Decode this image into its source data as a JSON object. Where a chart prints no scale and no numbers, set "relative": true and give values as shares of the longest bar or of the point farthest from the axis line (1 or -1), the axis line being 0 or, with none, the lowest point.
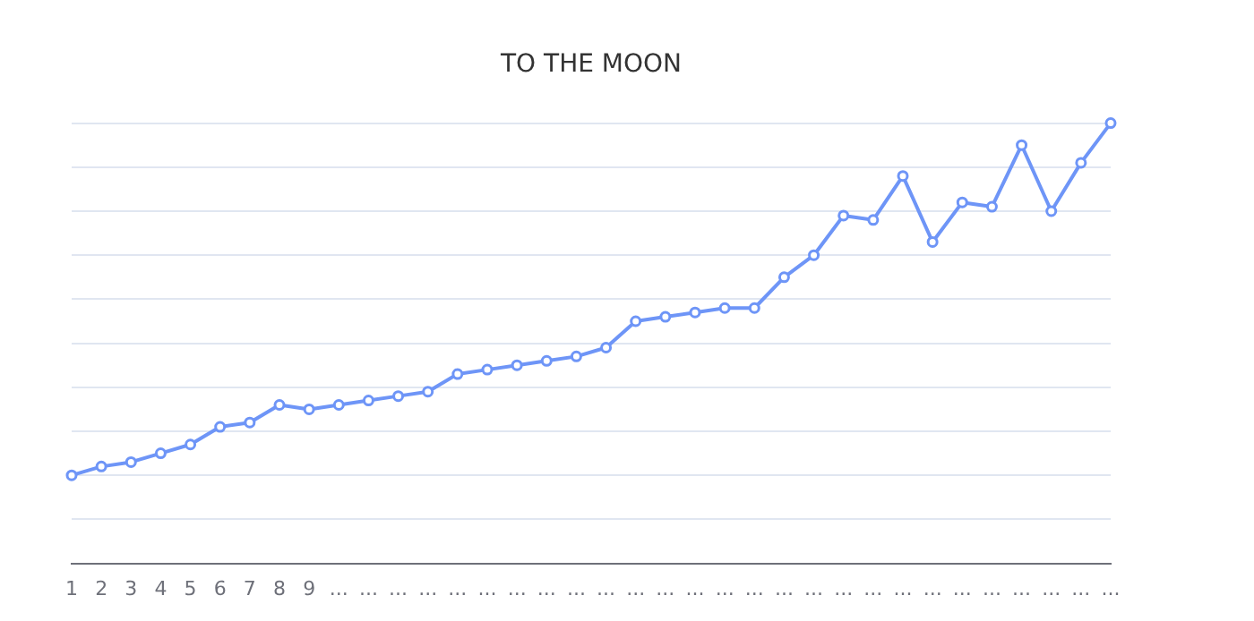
{
  "chart_data": {
    "type": "line",
    "title": "TO THE MOON",
    "relative": true,
    "grid": "y",
    "marker": "circle",
    "legend": false,
    "categories": [
      "1",
      "2",
      "3",
      "4",
      "5",
      "6",
      "7",
      "8",
      "9",
      "...",
      "...",
      "...",
      "...",
      "...",
      "...",
      "...",
      "...",
      "...",
      "...",
      "...",
      "...",
      "...",
      "...",
      "...",
      "...",
      "...",
      "...",
      "...",
      "...",
      "...",
      "...",
      "...",
      "...",
      "...",
      "...",
      "..."
    ],
    "series": [
      {
        "color": "#6e95f7",
        "values": [
          0.2,
          0.22,
          0.23,
          0.25,
          0.27,
          0.31,
          0.32,
          0.36,
          0.35,
          0.36,
          0.37,
          0.38,
          0.39,
          0.43,
          0.44,
          0.45,
          0.46,
          0.47,
          0.49,
          0.55,
          0.56,
          0.57,
          0.58,
          0.58,
          0.65,
          0.7,
          0.79,
          0.78,
          0.88,
          0.73,
          0.82,
          0.81,
          0.95,
          0.8,
          0.91,
          1
        ]
      }
    ]
  }
}
